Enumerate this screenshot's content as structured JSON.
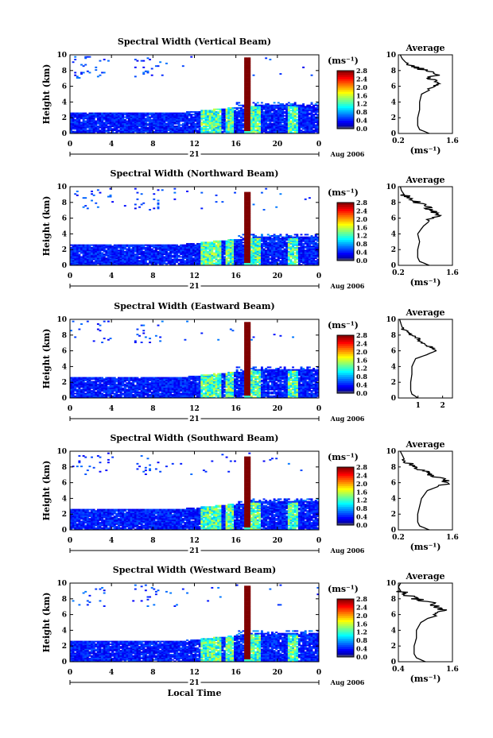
{
  "chart_data": [
    {
      "type": "heatmap",
      "title": "Spectral Width (Vertical Beam)",
      "ylabel": "Height (km)",
      "xlabel": "",
      "x_ticks": [
        "0",
        "4",
        "8",
        "12",
        "16",
        "20",
        "0"
      ],
      "y_ticks": [
        "0",
        "2",
        "4",
        "6",
        "8",
        "10"
      ],
      "xlim": [
        0,
        24
      ],
      "ylim": [
        0,
        10
      ],
      "date_day": "21",
      "date_month": "Aug 2006",
      "colorbar": {
        "unit": "(ms⁻¹)",
        "ticks": [
          "0.0",
          "0.4",
          "0.8",
          "1.2",
          "1.6",
          "2.0",
          "2.4",
          "2.8"
        ],
        "range": [
          0,
          2.8
        ]
      },
      "profile": {
        "title": "Average",
        "xlabel": "(ms⁻¹)",
        "x_ticks": [
          "0.2",
          "1.6"
        ],
        "xlim": [
          0.2,
          1.6
        ],
        "height": [
          0,
          0.5,
          1,
          1.5,
          2,
          3,
          4,
          5,
          6,
          6.5,
          7,
          7.5,
          8,
          8.5,
          9,
          9.5,
          10
        ],
        "value": [
          1.0,
          0.75,
          0.7,
          0.7,
          0.7,
          0.75,
          0.75,
          0.8,
          1.2,
          1.3,
          1.0,
          1.2,
          0.9,
          0.6,
          0.4,
          0.3,
          0.25
        ]
      }
    },
    {
      "type": "heatmap",
      "title": "Spectral Width (Northward Beam)",
      "ylabel": "Height (km)",
      "xlabel": "",
      "x_ticks": [
        "0",
        "4",
        "8",
        "12",
        "16",
        "20",
        "0"
      ],
      "y_ticks": [
        "0",
        "2",
        "4",
        "6",
        "8",
        "10"
      ],
      "xlim": [
        0,
        24
      ],
      "ylim": [
        0,
        10
      ],
      "date_day": "21",
      "date_month": "Aug 2006",
      "colorbar": {
        "unit": "(ms⁻¹)",
        "ticks": [
          "0.0",
          "0.4",
          "0.8",
          "1.2",
          "1.6",
          "2.0",
          "2.4",
          "2.8"
        ],
        "range": [
          0,
          2.8
        ]
      },
      "profile": {
        "title": "Average",
        "xlabel": "(ms⁻¹)",
        "x_ticks": [
          "0.2",
          "1.6"
        ],
        "xlim": [
          0.2,
          1.6
        ],
        "height": [
          0,
          0.5,
          1,
          1.5,
          2,
          3,
          4,
          5,
          6,
          6.5,
          7,
          7.5,
          8,
          8.5,
          9,
          9.5,
          10
        ],
        "value": [
          1.0,
          0.75,
          0.7,
          0.7,
          0.7,
          0.75,
          0.7,
          0.85,
          1.1,
          1.3,
          1.0,
          1.0,
          0.7,
          0.5,
          0.35,
          0.28,
          0.25
        ]
      }
    },
    {
      "type": "heatmap",
      "title": "Spectral Width (Eastward Beam)",
      "ylabel": "Height (km)",
      "xlabel": "",
      "x_ticks": [
        "0",
        "4",
        "8",
        "12",
        "16",
        "20",
        "0"
      ],
      "y_ticks": [
        "0",
        "2",
        "4",
        "6",
        "8",
        "10"
      ],
      "xlim": [
        0,
        24
      ],
      "ylim": [
        0,
        10
      ],
      "date_day": "21",
      "date_month": "Aug 2006",
      "colorbar": {
        "unit": "(ms⁻¹)",
        "ticks": [
          "0.0",
          "0.4",
          "0.8",
          "1.2",
          "1.6",
          "2.0",
          "2.4",
          "2.8"
        ],
        "range": [
          0,
          2.8
        ]
      },
      "profile": {
        "title": "Average",
        "xlabel": "",
        "x_ticks": [
          "1",
          "2"
        ],
        "xlim": [
          0.2,
          2.4
        ],
        "height": [
          0,
          0.5,
          1,
          1.5,
          2,
          3,
          4,
          5,
          6,
          6.5,
          7,
          7.5,
          8,
          8.5,
          9,
          9.5,
          10
        ],
        "value": [
          1.0,
          0.75,
          0.7,
          0.7,
          0.7,
          0.75,
          0.75,
          0.9,
          1.8,
          1.5,
          1.2,
          1.0,
          0.7,
          0.5,
          0.35,
          0.3,
          0.25
        ]
      }
    },
    {
      "type": "heatmap",
      "title": "Spectral Width (Southward Beam)",
      "ylabel": "Height (km)",
      "xlabel": "",
      "x_ticks": [
        "0",
        "4",
        "8",
        "12",
        "16",
        "20",
        "0"
      ],
      "y_ticks": [
        "0",
        "2",
        "4",
        "6",
        "8",
        "10"
      ],
      "xlim": [
        0,
        24
      ],
      "ylim": [
        0,
        10
      ],
      "date_day": "21",
      "date_month": "Aug 2006",
      "colorbar": {
        "unit": "(ms⁻¹)",
        "ticks": [
          "0.0",
          "0.4",
          "0.8",
          "1.2",
          "1.6",
          "2.0",
          "2.4",
          "2.8"
        ],
        "range": [
          0,
          2.8
        ]
      },
      "profile": {
        "title": "Average",
        "xlabel": "(ms⁻¹)",
        "x_ticks": [
          "0.2",
          "1.6"
        ],
        "xlim": [
          0.2,
          1.6
        ],
        "height": [
          0,
          0.5,
          1,
          1.5,
          2,
          3,
          4,
          5,
          6,
          6.5,
          7,
          7.5,
          8,
          8.5,
          9,
          9.5,
          10
        ],
        "value": [
          1.0,
          0.75,
          0.7,
          0.7,
          0.7,
          0.75,
          0.8,
          0.95,
          1.5,
          1.3,
          1.0,
          0.9,
          0.6,
          0.45,
          0.35,
          0.3,
          0.25
        ]
      }
    },
    {
      "type": "heatmap",
      "title": "Spectral Width (Westward Beam)",
      "ylabel": "Height (km)",
      "xlabel": "Local Time",
      "x_ticks": [
        "0",
        "4",
        "8",
        "12",
        "16",
        "20",
        "0"
      ],
      "y_ticks": [
        "0",
        "2",
        "4",
        "6",
        "8",
        "10"
      ],
      "xlim": [
        0,
        24
      ],
      "ylim": [
        0,
        10
      ],
      "date_day": "21",
      "date_month": "Aug 2006",
      "colorbar": {
        "unit": "(ms⁻¹)",
        "ticks": [
          "0.0",
          "0.4",
          "0.8",
          "1.2",
          "1.6",
          "2.0",
          "2.4",
          "2.8"
        ],
        "range": [
          0,
          2.8
        ]
      },
      "profile": {
        "title": "Average",
        "xlabel": "(ms⁻¹)",
        "x_ticks": [
          "0.4",
          "1.6"
        ],
        "xlim": [
          0.4,
          1.6
        ],
        "height": [
          0,
          0.5,
          1,
          1.5,
          2,
          3,
          4,
          5,
          6,
          6.5,
          7,
          7.5,
          8,
          8.5,
          9,
          9.5,
          10
        ],
        "value": [
          1.0,
          0.8,
          0.75,
          0.75,
          0.75,
          0.8,
          0.8,
          0.9,
          1.2,
          1.4,
          1.3,
          1.1,
          0.8,
          0.6,
          0.45,
          0.4,
          0.45
        ]
      }
    }
  ]
}
